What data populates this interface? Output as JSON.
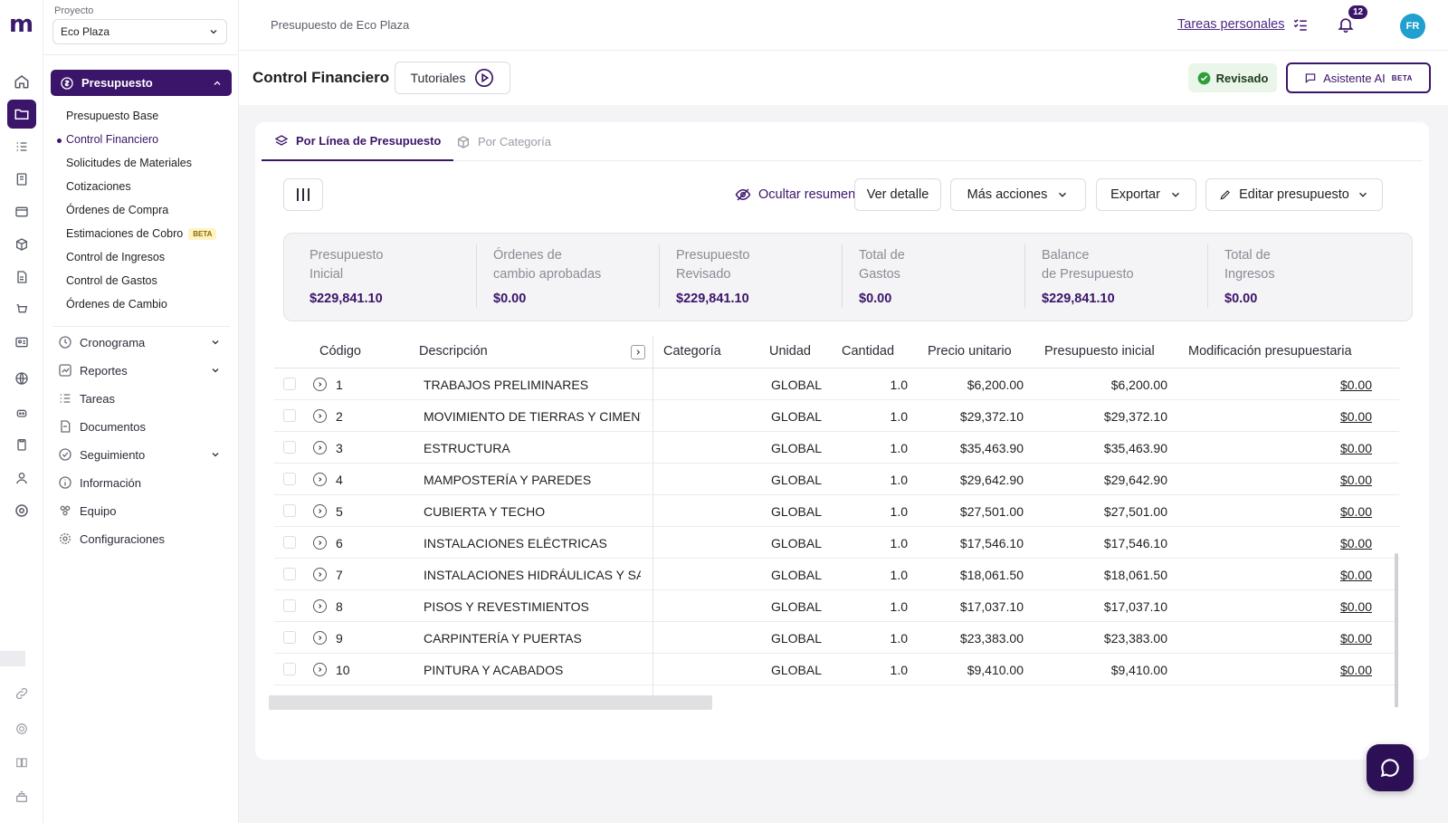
{
  "header": {
    "breadcrumb": "Presupuesto de Eco Plaza",
    "tareas_link": "Tareas personales",
    "notification_count": "12",
    "avatar_initials": "FR"
  },
  "sidebar": {
    "project_label": "Proyecto",
    "project_value": "Eco Plaza",
    "section_label": "Presupuesto",
    "sub_items": [
      {
        "label": "Presupuesto Base"
      },
      {
        "label": "Control Financiero",
        "active": true
      },
      {
        "label": "Solicitudes de Materiales"
      },
      {
        "label": "Cotizaciones"
      },
      {
        "label": "Órdenes de Compra"
      },
      {
        "label": "Estimaciones de Cobro",
        "badge": "BETA"
      },
      {
        "label": "Control de Ingresos"
      },
      {
        "label": "Control de Gastos"
      },
      {
        "label": "Órdenes de Cambio"
      }
    ],
    "nav_items": [
      {
        "label": "Cronograma",
        "icon": "clock-icon"
      },
      {
        "label": "Reportes",
        "icon": "chart-icon"
      },
      {
        "label": "Tareas",
        "icon": "tasks-icon"
      },
      {
        "label": "Documentos",
        "icon": "document-icon"
      },
      {
        "label": "Seguimiento",
        "icon": "check-circle-icon"
      },
      {
        "label": "Información",
        "icon": "info-icon"
      },
      {
        "label": "Equipo",
        "icon": "team-icon"
      },
      {
        "label": "Configuraciones",
        "icon": "gear-icon"
      }
    ]
  },
  "page": {
    "title": "Control Financiero",
    "tutorials": "Tutoriales",
    "status": "Revisado",
    "assistant": "Asistente AI",
    "assistant_badge": "BETA"
  },
  "tabs": [
    {
      "label": "Por Línea de Presupuesto",
      "active": true
    },
    {
      "label": "Por Categoría",
      "active": false
    }
  ],
  "toolbar": {
    "hide_summary": "Ocultar resumen",
    "view_detail": "Ver detalle",
    "more_actions": "Más acciones",
    "export": "Exportar",
    "edit_budget": "Editar presupuesto"
  },
  "summary": [
    {
      "label_1": "Presupuesto",
      "label_2": "Inicial",
      "value": "$229,841.10"
    },
    {
      "label_1": "Órdenes de",
      "label_2": "cambio aprobadas",
      "value": "$0.00"
    },
    {
      "label_1": "Presupuesto",
      "label_2": "Revisado",
      "value": "$229,841.10"
    },
    {
      "label_1": "Total de",
      "label_2": "Gastos",
      "value": "$0.00"
    },
    {
      "label_1": "Balance",
      "label_2": "de Presupuesto",
      "value": "$229,841.10"
    },
    {
      "label_1": "Total de",
      "label_2": "Ingresos",
      "value": "$0.00"
    }
  ],
  "table": {
    "columns": {
      "code": "Código",
      "description": "Descripción",
      "category": "Categoría",
      "unit": "Unidad",
      "qty": "Cantidad",
      "unit_price": "Precio unitario",
      "initial_budget": "Presupuesto inicial",
      "modification": "Modificación presupuestaria"
    },
    "rows": [
      {
        "code": "1",
        "description": "TRABAJOS PRELIMINARES",
        "unit": "GLOBAL",
        "qty": "1.0",
        "unit_price": "$6,200.00",
        "initial": "$6,200.00",
        "mod": "$0.00"
      },
      {
        "code": "2",
        "description": "MOVIMIENTO DE TIERRAS Y CIMENT...",
        "unit": "GLOBAL",
        "qty": "1.0",
        "unit_price": "$29,372.10",
        "initial": "$29,372.10",
        "mod": "$0.00"
      },
      {
        "code": "3",
        "description": "ESTRUCTURA",
        "unit": "GLOBAL",
        "qty": "1.0",
        "unit_price": "$35,463.90",
        "initial": "$35,463.90",
        "mod": "$0.00"
      },
      {
        "code": "4",
        "description": "MAMPOSTERÍA Y PAREDES",
        "unit": "GLOBAL",
        "qty": "1.0",
        "unit_price": "$29,642.90",
        "initial": "$29,642.90",
        "mod": "$0.00"
      },
      {
        "code": "5",
        "description": "CUBIERTA Y TECHO",
        "unit": "GLOBAL",
        "qty": "1.0",
        "unit_price": "$27,501.00",
        "initial": "$27,501.00",
        "mod": "$0.00"
      },
      {
        "code": "6",
        "description": "INSTALACIONES ELÉCTRICAS",
        "unit": "GLOBAL",
        "qty": "1.0",
        "unit_price": "$17,546.10",
        "initial": "$17,546.10",
        "mod": "$0.00"
      },
      {
        "code": "7",
        "description": "INSTALACIONES HIDRÁULICAS Y SAN...",
        "unit": "GLOBAL",
        "qty": "1.0",
        "unit_price": "$18,061.50",
        "initial": "$18,061.50",
        "mod": "$0.00"
      },
      {
        "code": "8",
        "description": "PISOS Y REVESTIMIENTOS",
        "unit": "GLOBAL",
        "qty": "1.0",
        "unit_price": "$17,037.10",
        "initial": "$17,037.10",
        "mod": "$0.00"
      },
      {
        "code": "9",
        "description": "CARPINTERÍA Y PUERTAS",
        "unit": "GLOBAL",
        "qty": "1.0",
        "unit_price": "$23,383.00",
        "initial": "$23,383.00",
        "mod": "$0.00"
      },
      {
        "code": "10",
        "description": "PINTURA Y ACABADOS",
        "unit": "GLOBAL",
        "qty": "1.0",
        "unit_price": "$9,410.00",
        "initial": "$9,410.00",
        "mod": "$0.00"
      }
    ]
  },
  "colors": {
    "brand": "#3b1569",
    "status_bg": "#eaf6ea",
    "status_dot": "#2e9e3a"
  }
}
